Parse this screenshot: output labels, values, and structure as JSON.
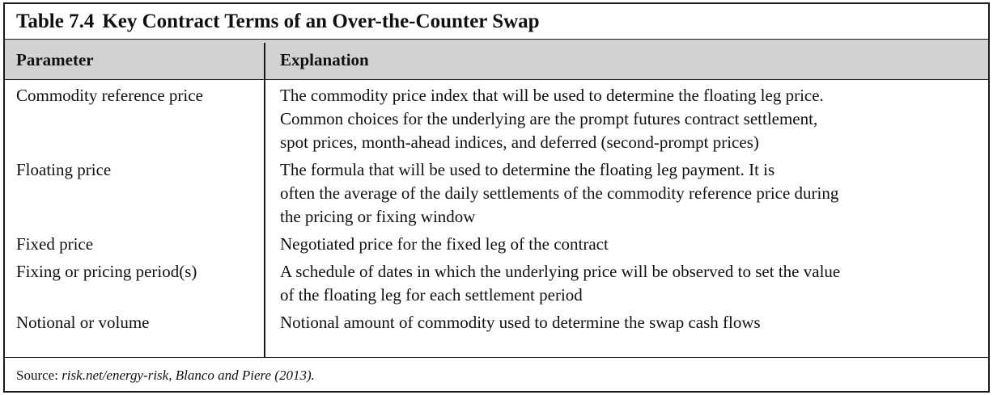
{
  "table": {
    "number": "Table 7.4",
    "title": "Key Contract Terms of an Over-the-Counter Swap",
    "headers": {
      "parameter": "Parameter",
      "explanation": "Explanation"
    },
    "rows": [
      {
        "parameter": "Commodity reference price",
        "explanation_lines": [
          "The commodity price index that will be used to determine the floating leg price.",
          "Common choices for the underlying are the prompt futures contract settlement,",
          "spot prices, month-ahead indices, and deferred (second-prompt prices)"
        ]
      },
      {
        "parameter": "Floating price",
        "explanation_lines": [
          "The formula that will be used to determine the floating leg payment. It is",
          "often the average of the daily settlements of the commodity reference price during",
          "the pricing or fixing window"
        ]
      },
      {
        "parameter": "Fixed price",
        "explanation_lines": [
          "Negotiated price for the fixed leg of the contract"
        ]
      },
      {
        "parameter": "Fixing or pricing period(s)",
        "explanation_lines": [
          "A schedule of dates in which the underlying price will be observed to set the value",
          "of the floating leg for each settlement period"
        ]
      },
      {
        "parameter": "Notional or volume",
        "explanation_lines": [
          "Notional amount of commodity used to determine the swap cash flows"
        ]
      }
    ],
    "source": {
      "label": "Source:",
      "reference": "risk.net/energy-risk, Blanco and Piere (2013)."
    }
  }
}
